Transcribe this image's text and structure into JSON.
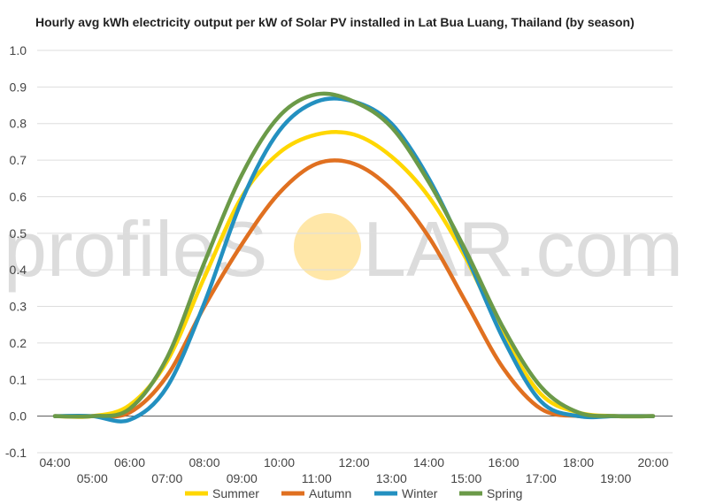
{
  "chart_data": {
    "type": "line",
    "title": "Hourly avg kWh electricity output per kW of Solar PV installed in Lat Bua Luang, Thailand (by season)",
    "xlabel": "",
    "ylabel": "",
    "ylim": [
      -0.1,
      1.0
    ],
    "yticks": [
      "1.0",
      "0.9",
      "0.8",
      "0.7",
      "0.6",
      "0.5",
      "0.4",
      "0.3",
      "0.2",
      "0.1",
      "0.0",
      "-0.1"
    ],
    "x_tick_labels_upper": [
      "04:00",
      "06:00",
      "08:00",
      "10:00",
      "12:00",
      "14:00",
      "16:00",
      "18:00",
      "20:00"
    ],
    "x_tick_labels_lower": [
      "05:00",
      "07:00",
      "09:00",
      "11:00",
      "13:00",
      "15:00",
      "17:00",
      "19:00"
    ],
    "x_hours": [
      4,
      5,
      6,
      7,
      8,
      9,
      10,
      11,
      12,
      13,
      14,
      15,
      16,
      17,
      18,
      19,
      20
    ],
    "grid": true,
    "legend_position": "bottom",
    "series": [
      {
        "name": "Summer",
        "color": "#FFD700",
        "values": [
          0.0,
          0.0,
          0.03,
          0.15,
          0.38,
          0.6,
          0.72,
          0.77,
          0.77,
          0.71,
          0.6,
          0.43,
          0.22,
          0.06,
          0.01,
          0.0,
          0.0
        ]
      },
      {
        "name": "Autumn",
        "color": "#E07020",
        "values": [
          0.0,
          0.0,
          0.01,
          0.11,
          0.3,
          0.47,
          0.61,
          0.69,
          0.69,
          0.62,
          0.49,
          0.31,
          0.13,
          0.02,
          0.0,
          0.0,
          0.0
        ]
      },
      {
        "name": "Winter",
        "color": "#2390C0",
        "values": [
          0.0,
          0.0,
          -0.01,
          0.08,
          0.31,
          0.59,
          0.78,
          0.86,
          0.86,
          0.8,
          0.65,
          0.44,
          0.21,
          0.04,
          0.0,
          0.0,
          0.0
        ]
      },
      {
        "name": "Spring",
        "color": "#6B9A48",
        "values": [
          0.0,
          0.0,
          0.02,
          0.16,
          0.42,
          0.66,
          0.82,
          0.88,
          0.86,
          0.79,
          0.64,
          0.45,
          0.24,
          0.08,
          0.01,
          0.0,
          0.0
        ]
      }
    ]
  },
  "watermark": {
    "text_left": "profileS",
    "text_right": "LAR.com",
    "sun_color": "#FFE7A8",
    "text_color": "#dcdcdc"
  }
}
